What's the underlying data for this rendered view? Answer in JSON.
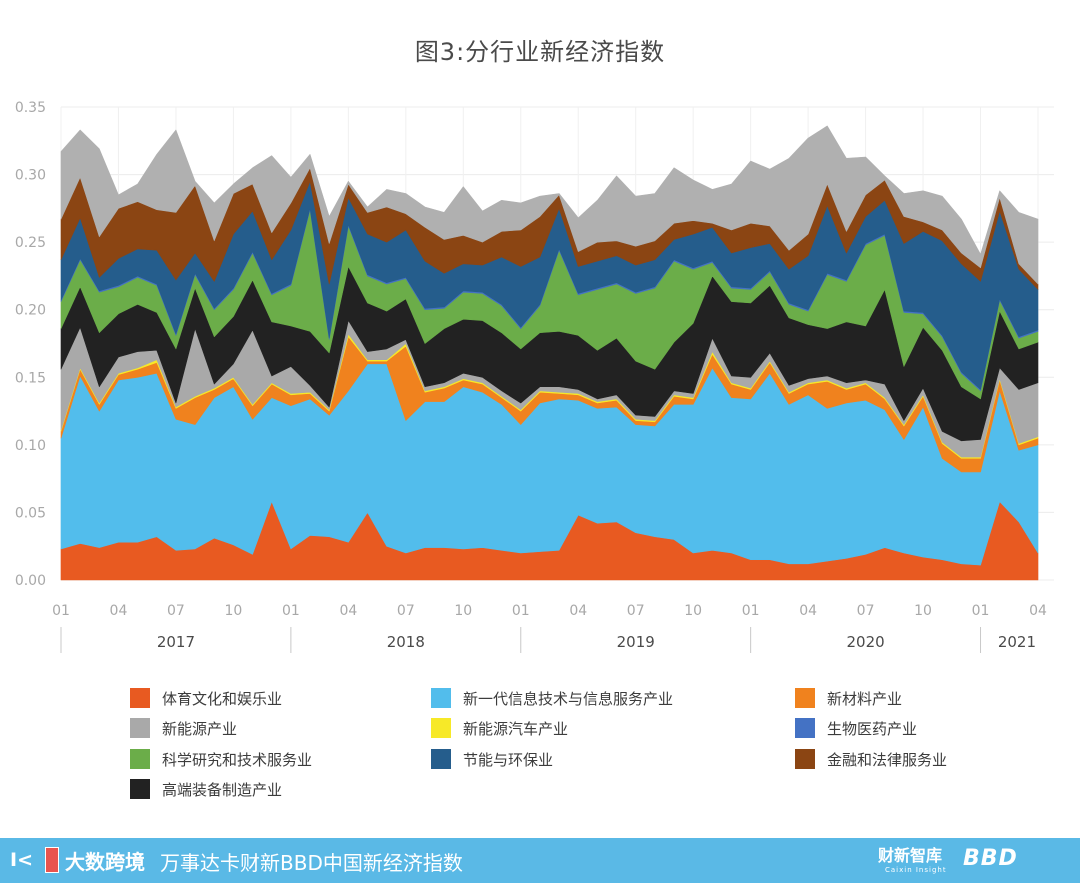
{
  "title": "图3:分行业新经济指数",
  "chart_data": {
    "type": "area",
    "stacked": true,
    "title": "图3:分行业新经济指数",
    "xlabel": "",
    "ylabel": "",
    "ylim": [
      0,
      0.35
    ],
    "yticks": [
      "0.00",
      "0.05",
      "0.10",
      "0.15",
      "0.20",
      "0.25",
      "0.30",
      "0.35"
    ],
    "grid": true,
    "legend_position": "bottom",
    "x_month_ticks": [
      "01",
      "04",
      "07",
      "10",
      "01",
      "04",
      "07",
      "10",
      "01",
      "04",
      "07",
      "10",
      "01",
      "04",
      "07",
      "10",
      "01",
      "04"
    ],
    "year_labels": [
      "2017",
      "2018",
      "2019",
      "2020",
      "2021"
    ],
    "period_start": "2017-01",
    "period_end": "2021-04",
    "x": [
      "2017-01",
      "2017-02",
      "2017-03",
      "2017-04",
      "2017-05",
      "2017-06",
      "2017-07",
      "2017-08",
      "2017-09",
      "2017-10",
      "2017-11",
      "2017-12",
      "2018-01",
      "2018-02",
      "2018-03",
      "2018-04",
      "2018-05",
      "2018-06",
      "2018-07",
      "2018-08",
      "2018-09",
      "2018-10",
      "2018-11",
      "2018-12",
      "2019-01",
      "2019-02",
      "2019-03",
      "2019-04",
      "2019-05",
      "2019-06",
      "2019-07",
      "2019-08",
      "2019-09",
      "2019-10",
      "2019-11",
      "2019-12",
      "2020-01",
      "2020-02",
      "2020-03",
      "2020-04",
      "2020-05",
      "2020-06",
      "2020-07",
      "2020-08",
      "2020-09",
      "2020-10",
      "2020-11",
      "2020-12",
      "2021-01",
      "2021-02",
      "2021-03",
      "2021-04"
    ],
    "series": [
      {
        "name": "体育文化和娱乐业",
        "color": "#e85a21",
        "values": [
          0.023,
          0.027,
          0.024,
          0.028,
          0.028,
          0.032,
          0.022,
          0.023,
          0.031,
          0.026,
          0.019,
          0.058,
          0.023,
          0.033,
          0.032,
          0.028,
          0.05,
          0.025,
          0.02,
          0.024,
          0.024,
          0.023,
          0.024,
          0.022,
          0.02,
          0.021,
          0.022,
          0.048,
          0.042,
          0.043,
          0.035,
          0.032,
          0.03,
          0.02,
          0.022,
          0.02,
          0.015,
          0.015,
          0.012,
          0.012,
          0.014,
          0.016,
          0.019,
          0.024,
          0.02,
          0.017,
          0.015,
          0.012,
          0.011,
          0.058,
          0.043,
          0.02
        ]
      },
      {
        "name": "新一代信息技术与信息服务产业",
        "color": "#52bdec",
        "values": [
          0.082,
          0.124,
          0.101,
          0.12,
          0.122,
          0.121,
          0.097,
          0.092,
          0.104,
          0.117,
          0.1,
          0.077,
          0.106,
          0.101,
          0.09,
          0.112,
          0.11,
          0.135,
          0.098,
          0.108,
          0.108,
          0.12,
          0.115,
          0.108,
          0.095,
          0.11,
          0.112,
          0.085,
          0.085,
          0.085,
          0.08,
          0.082,
          0.1,
          0.11,
          0.135,
          0.115,
          0.119,
          0.138,
          0.118,
          0.125,
          0.113,
          0.115,
          0.114,
          0.102,
          0.084,
          0.111,
          0.075,
          0.068,
          0.069,
          0.082,
          0.053,
          0.08
        ]
      },
      {
        "name": "新材料产业",
        "color": "#f0821e",
        "values": [
          0.005,
          0.005,
          0.005,
          0.004,
          0.006,
          0.008,
          0.008,
          0.02,
          0.006,
          0.006,
          0.01,
          0.01,
          0.008,
          0.004,
          0.003,
          0.04,
          0.002,
          0.002,
          0.055,
          0.007,
          0.01,
          0.005,
          0.006,
          0.005,
          0.01,
          0.008,
          0.004,
          0.004,
          0.004,
          0.005,
          0.003,
          0.003,
          0.006,
          0.004,
          0.01,
          0.01,
          0.007,
          0.008,
          0.008,
          0.008,
          0.02,
          0.01,
          0.012,
          0.008,
          0.01,
          0.008,
          0.011,
          0.01,
          0.01,
          0.008,
          0.004,
          0.005
        ]
      },
      {
        "name": "新能源汽车产业",
        "color": "#f7e928",
        "values": [
          0.001,
          0.001,
          0.001,
          0.001,
          0.001,
          0.002,
          0.001,
          0.001,
          0.001,
          0.001,
          0.001,
          0.001,
          0.001,
          0.001,
          0.001,
          0.002,
          0.001,
          0.001,
          0.002,
          0.001,
          0.001,
          0.001,
          0.001,
          0.001,
          0.001,
          0.001,
          0.001,
          0.001,
          0.001,
          0.001,
          0.001,
          0.001,
          0.001,
          0.001,
          0.002,
          0.001,
          0.001,
          0.001,
          0.001,
          0.001,
          0.001,
          0.001,
          0.001,
          0.001,
          0.001,
          0.001,
          0.001,
          0.001,
          0.001,
          0.001,
          0.001,
          0.001
        ]
      },
      {
        "name": "新能源产业",
        "color": "#a9a9a9",
        "values": [
          0.045,
          0.03,
          0.012,
          0.012,
          0.012,
          0.007,
          0.003,
          0.05,
          0.003,
          0.01,
          0.055,
          0.005,
          0.02,
          0.005,
          0.002,
          0.01,
          0.006,
          0.008,
          0.003,
          0.003,
          0.003,
          0.004,
          0.004,
          0.004,
          0.005,
          0.003,
          0.004,
          0.003,
          0.002,
          0.003,
          0.003,
          0.003,
          0.003,
          0.003,
          0.01,
          0.005,
          0.008,
          0.006,
          0.005,
          0.003,
          0.003,
          0.004,
          0.002,
          0.01,
          0.003,
          0.005,
          0.008,
          0.012,
          0.013,
          0.008,
          0.04,
          0.04
        ]
      },
      {
        "name": "高端装备制造产业",
        "color": "#222222",
        "values": [
          0.03,
          0.03,
          0.04,
          0.032,
          0.035,
          0.028,
          0.04,
          0.03,
          0.035,
          0.035,
          0.037,
          0.04,
          0.03,
          0.04,
          0.04,
          0.04,
          0.036,
          0.028,
          0.03,
          0.032,
          0.04,
          0.04,
          0.042,
          0.043,
          0.04,
          0.04,
          0.041,
          0.04,
          0.036,
          0.042,
          0.04,
          0.035,
          0.036,
          0.052,
          0.046,
          0.055,
          0.055,
          0.05,
          0.05,
          0.04,
          0.035,
          0.045,
          0.04,
          0.07,
          0.04,
          0.045,
          0.06,
          0.04,
          0.03,
          0.042,
          0.03,
          0.03
        ]
      },
      {
        "name": "科学研究和技术服务业",
        "color": "#6bad49",
        "values": [
          0.02,
          0.02,
          0.03,
          0.02,
          0.02,
          0.02,
          0.01,
          0.01,
          0.02,
          0.02,
          0.02,
          0.02,
          0.03,
          0.09,
          0.01,
          0.03,
          0.02,
          0.02,
          0.015,
          0.025,
          0.015,
          0.02,
          0.02,
          0.02,
          0.015,
          0.02,
          0.06,
          0.03,
          0.045,
          0.04,
          0.05,
          0.06,
          0.06,
          0.04,
          0.01,
          0.01,
          0.01,
          0.01,
          0.01,
          0.01,
          0.04,
          0.03,
          0.06,
          0.04,
          0.04,
          0.01,
          0.01,
          0.01,
          0.006,
          0.008,
          0.008,
          0.008
        ]
      },
      {
        "name": "生物医药产业",
        "color": "#4472c4",
        "values": [
          0.001,
          0.001,
          0.001,
          0.001,
          0.001,
          0.001,
          0.001,
          0.001,
          0.001,
          0.001,
          0.001,
          0.001,
          0.001,
          0.001,
          0.001,
          0.001,
          0.001,
          0.001,
          0.001,
          0.001,
          0.001,
          0.001,
          0.001,
          0.001,
          0.001,
          0.001,
          0.001,
          0.001,
          0.001,
          0.001,
          0.001,
          0.001,
          0.001,
          0.001,
          0.001,
          0.001,
          0.001,
          0.001,
          0.001,
          0.001,
          0.001,
          0.001,
          0.001,
          0.001,
          0.001,
          0.001,
          0.001,
          0.001,
          0.001,
          0.001,
          0.001,
          0.001
        ]
      },
      {
        "name": "节能与环保业",
        "color": "#255d8c",
        "values": [
          0.03,
          0.03,
          0.01,
          0.02,
          0.02,
          0.025,
          0.04,
          0.015,
          0.02,
          0.04,
          0.03,
          0.025,
          0.04,
          0.02,
          0.04,
          0.02,
          0.03,
          0.03,
          0.035,
          0.035,
          0.025,
          0.02,
          0.02,
          0.035,
          0.045,
          0.035,
          0.03,
          0.02,
          0.02,
          0.02,
          0.02,
          0.02,
          0.015,
          0.025,
          0.025,
          0.025,
          0.03,
          0.02,
          0.025,
          0.04,
          0.05,
          0.02,
          0.02,
          0.025,
          0.05,
          0.06,
          0.07,
          0.08,
          0.08,
          0.065,
          0.05,
          0.03
        ]
      },
      {
        "name": "金融和法律服务业",
        "color": "#8b4513",
        "values": [
          0.03,
          0.03,
          0.03,
          0.037,
          0.035,
          0.03,
          0.05,
          0.05,
          0.03,
          0.03,
          0.02,
          0.02,
          0.02,
          0.01,
          0.03,
          0.01,
          0.016,
          0.026,
          0.012,
          0.025,
          0.025,
          0.021,
          0.017,
          0.019,
          0.027,
          0.03,
          0.01,
          0.011,
          0.014,
          0.011,
          0.014,
          0.014,
          0.012,
          0.01,
          0.003,
          0.017,
          0.018,
          0.013,
          0.014,
          0.016,
          0.016,
          0.016,
          0.016,
          0.015,
          0.02,
          0.007,
          0.008,
          0.008,
          0.01,
          0.01,
          0.004,
          0.004
        ]
      },
      {
        "name": "",
        "color": "#b0b0b0",
        "values": [
          0.05,
          0.035,
          0.065,
          0.01,
          0.013,
          0.041,
          0.061,
          0.003,
          0.028,
          0.007,
          0.012,
          0.057,
          0.019,
          0.01,
          0.02,
          0.002,
          0.004,
          0.013,
          0.015,
          0.015,
          0.02,
          0.036,
          0.023,
          0.023,
          0.02,
          0.015,
          0.001,
          0.025,
          0.031,
          0.048,
          0.037,
          0.035,
          0.041,
          0.03,
          0.025,
          0.034,
          0.046,
          0.042,
          0.068,
          0.071,
          0.043,
          0.054,
          0.028,
          0.003,
          0.017,
          0.023,
          0.025,
          0.025,
          0.01,
          0.005,
          0.038,
          0.048
        ]
      }
    ],
    "legend": [
      {
        "label": "体育文化和娱乐业",
        "color": "#e85a21"
      },
      {
        "label": "新一代信息技术与信息服务产业",
        "color": "#52bdec"
      },
      {
        "label": "新材料产业",
        "color": "#f0821e"
      },
      {
        "label": "新能源产业",
        "color": "#a9a9a9"
      },
      {
        "label": "新能源汽车产业",
        "color": "#f7e928"
      },
      {
        "label": "生物医药产业",
        "color": "#4472c4"
      },
      {
        "label": "科学研究和技术服务业",
        "color": "#6bad49"
      },
      {
        "label": "节能与环保业",
        "color": "#255d8c"
      },
      {
        "label": "金融和法律服务业",
        "color": "#8b4513"
      },
      {
        "label": "高端装备制造产业",
        "color": "#222222"
      }
    ]
  },
  "footer": {
    "logo_mark": "I<",
    "logo_text": "大数跨境",
    "title": "万事达卡财新BBD中国新经济指数",
    "brand_1": "财新智库",
    "brand_1_sub": "Caixin Insight",
    "brand_2": "BBD",
    "background": "#5ab9e6"
  }
}
